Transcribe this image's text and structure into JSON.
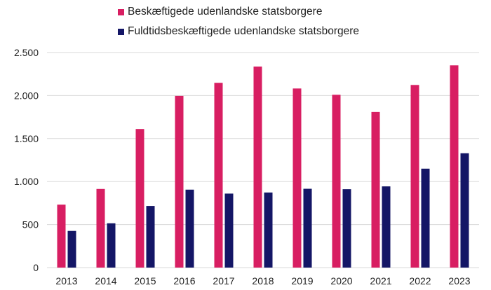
{
  "chart_data": {
    "type": "bar",
    "categories": [
      "2013",
      "2014",
      "2015",
      "2016",
      "2017",
      "2018",
      "2019",
      "2020",
      "2021",
      "2022",
      "2023"
    ],
    "series": [
      {
        "name": "Beskæftigede udenlandske statsborgere",
        "color": "#d81e62",
        "values": [
          732,
          914,
          1611,
          1996,
          2148,
          2337,
          2082,
          2009,
          1809,
          2123,
          2351
        ]
      },
      {
        "name": "Fuldtidsbeskæftigede udenlandske statsborgere",
        "color": "#141666",
        "values": [
          426,
          515,
          716,
          906,
          860,
          873,
          916,
          911,
          944,
          1150,
          1329
        ]
      }
    ],
    "yticks": [
      0,
      500,
      1000,
      1500,
      2000,
      2500
    ],
    "ytick_labels": [
      "0",
      "500",
      "1.000",
      "1.500",
      "2.000",
      "2.500"
    ],
    "ylim": [
      0,
      2500
    ],
    "grid": true,
    "legend": "top",
    "title": "",
    "xlabel": "",
    "ylabel": ""
  }
}
